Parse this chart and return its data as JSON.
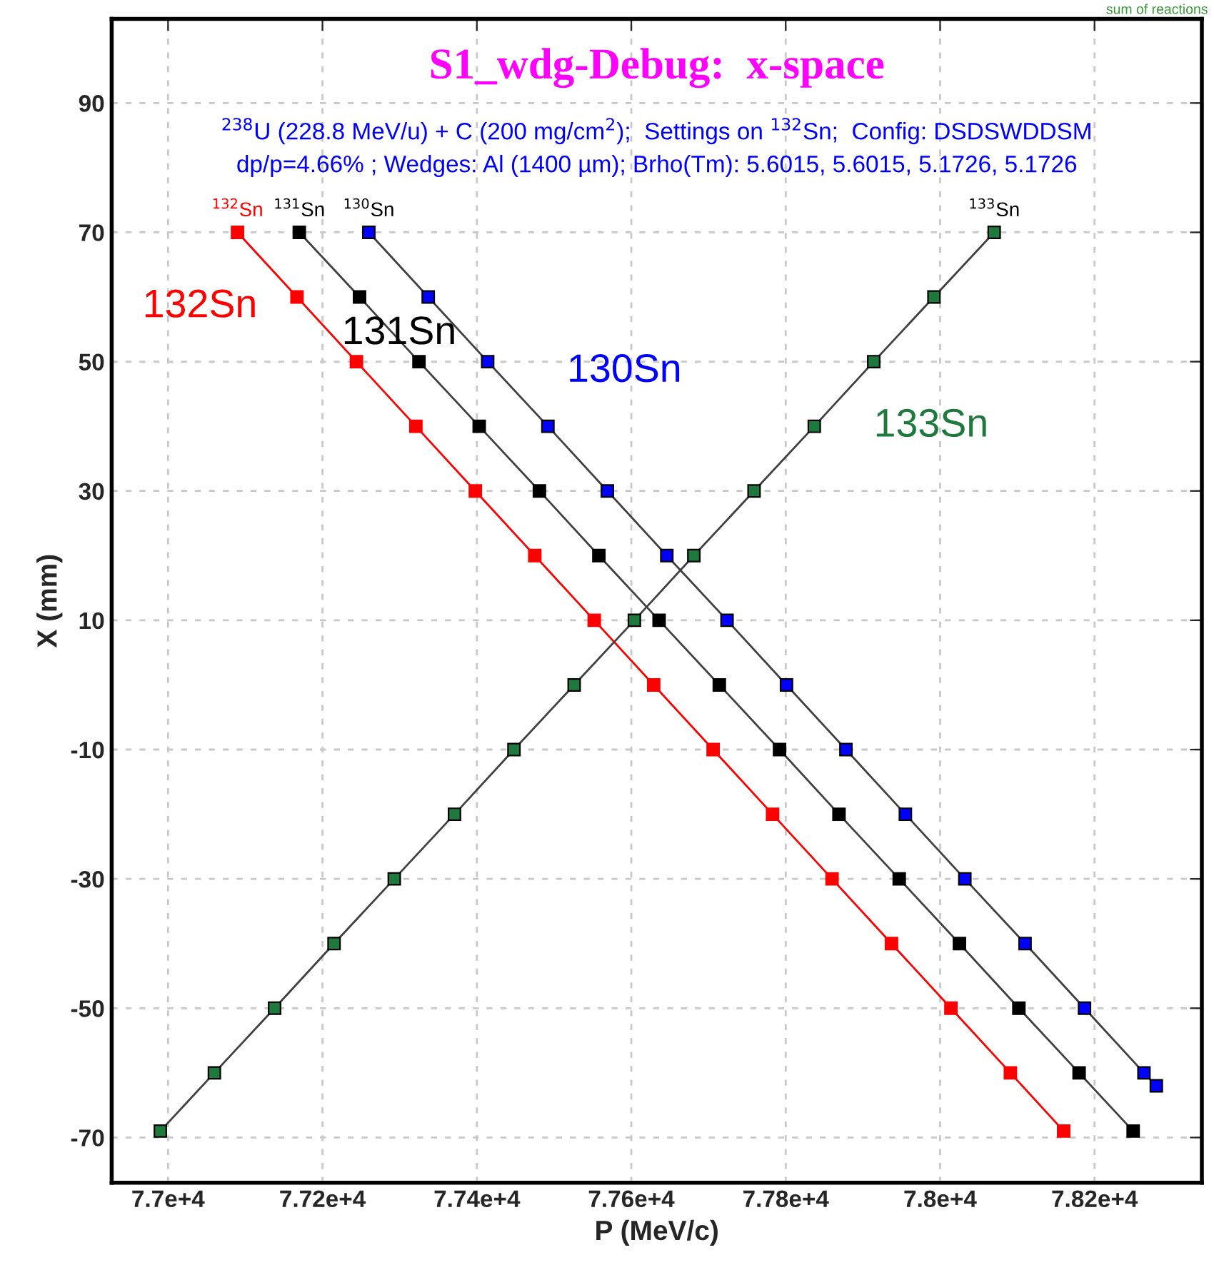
{
  "chart_data": {
    "type": "line",
    "title": "S1_wdg-Debug:  x-space",
    "subtitle": "$^{238}$U (228.8 MeV/u) + C (200 mg/cm$^{2}$);  Settings on $^{132}$Sn;  Config: DSDSWDDSM\ndp/p=4.66% ; Wedges: Al (1400 µm); Brho(Tm): 5.6015, 5.6015, 5.1726, 5.1726",
    "xlabel": "P (MeV/c)",
    "ylabel": "X (mm)",
    "series": [
      {
        "name": "132Sn",
        "color": "#ff0000",
        "x": [
          77090,
          77167,
          77244,
          77321,
          77398,
          77475,
          77552,
          77629,
          77706,
          77783,
          77860,
          77937,
          78014,
          78091,
          78160
        ],
        "values": [
          70,
          60,
          50,
          40,
          30,
          20,
          10,
          0,
          -10,
          -20,
          -30,
          -40,
          -50,
          -60,
          -69
        ]
      },
      {
        "name": "131Sn",
        "color": "#000000",
        "x": [
          77170,
          77248,
          77325,
          77403,
          77481,
          77558,
          77636,
          77714,
          77792,
          77869,
          77947,
          78025,
          78102,
          78180,
          78250
        ],
        "values": [
          70,
          60,
          50,
          40,
          30,
          20,
          10,
          0,
          -10,
          -20,
          -30,
          -40,
          -50,
          -60,
          -69
        ]
      },
      {
        "name": "130Sn",
        "color": "#0000ff",
        "x": [
          77260,
          77337,
          77414,
          77492,
          77569,
          77646,
          77724,
          77801,
          77878,
          77955,
          78032,
          78110,
          78187,
          78264,
          78280
        ],
        "values": [
          70,
          60,
          50,
          40,
          30,
          20,
          10,
          0,
          -10,
          -20,
          -30,
          -40,
          -50,
          -60,
          -62
        ]
      },
      {
        "name": "133Sn",
        "color": "#1e7a3c",
        "x": [
          76990,
          77060,
          77138,
          77215,
          77293,
          77371,
          77448,
          77526,
          77604,
          77681,
          77759,
          77837,
          77914,
          77992,
          78070
        ],
        "values": [
          -69,
          -60,
          -50,
          -40,
          -30,
          -20,
          -10,
          0,
          10,
          20,
          30,
          40,
          50,
          60,
          70
        ]
      }
    ],
    "annotations": [
      {
        "text": "$^{132}$Sn",
        "x": 77090,
        "y": 70
      },
      {
        "text": "$^{131}$Sn",
        "x": 77170,
        "y": 70
      },
      {
        "text": "$^{130}$Sn",
        "x": 77260,
        "y": 70
      },
      {
        "text": "$^{133}$Sn",
        "x": 78070,
        "y": 70
      },
      "sum of reactions"
    ],
    "xlim": [
      76927,
      78339
    ],
    "ylim": [
      -77,
      103
    ],
    "xticks": [
      {
        "value": 77000,
        "label": "7.7e+4"
      },
      {
        "value": 77200,
        "label": "7.72e+4"
      },
      {
        "value": 77400,
        "label": "7.74e+4"
      },
      {
        "value": 77600,
        "label": "7.76e+4"
      },
      {
        "value": 77800,
        "label": "7.78e+4"
      },
      {
        "value": 78000,
        "label": "7.8e+4"
      },
      {
        "value": 78200,
        "label": "7.82e+4"
      }
    ],
    "yticks": [
      -70,
      -50,
      -30,
      -10,
      10,
      30,
      50,
      70,
      90
    ],
    "grid": true,
    "marker": "square",
    "line_style": "solid",
    "legend": false
  }
}
